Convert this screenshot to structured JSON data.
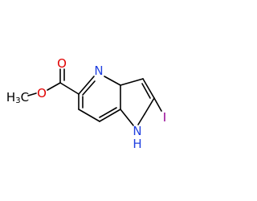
{
  "molecule": {
    "methyl": {
      "h": "H",
      "sub": "3",
      "c": "C"
    },
    "ester_oxygen": "O",
    "carbonyl_oxygen": "O",
    "pyridine_nitrogen": "N",
    "pyrrole_nitrogen": "N",
    "pyrrole_hydrogen": "H",
    "iodine": "I"
  }
}
